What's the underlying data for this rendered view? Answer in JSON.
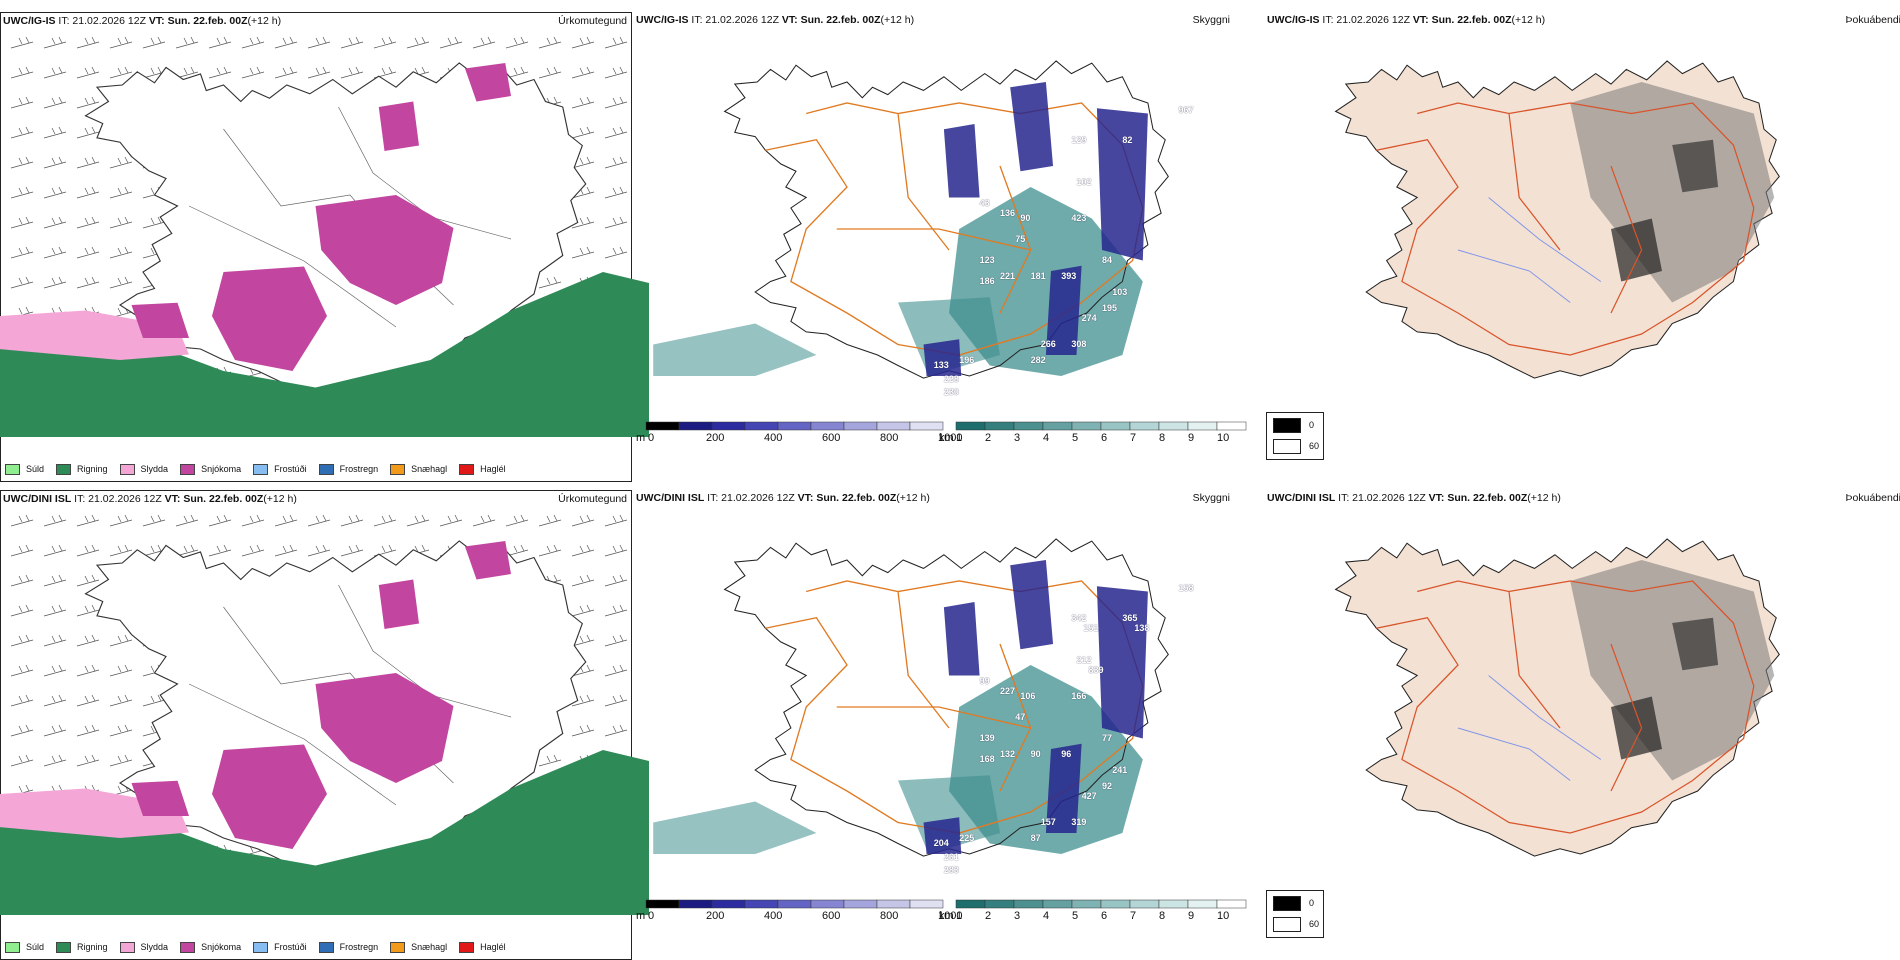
{
  "rows": [
    {
      "model": "UWC/IG-IS",
      "it_label": "IT:",
      "it_value": "21.02.2026 12Z",
      "vt_label": "VT:",
      "vt_value": "Sun. 22.feb. 00Z",
      "lead": "(+12 h)",
      "labels": [
        {
          "t": "129"
        },
        {
          "t": "82"
        },
        {
          "t": "102"
        },
        {
          "t": "43"
        },
        {
          "t": "136"
        },
        {
          "t": "90"
        },
        {
          "t": "423"
        },
        {
          "t": "75"
        },
        {
          "t": "123"
        },
        {
          "t": "84"
        },
        {
          "t": "221"
        },
        {
          "t": "181"
        },
        {
          "t": "393"
        },
        {
          "t": "103"
        },
        {
          "t": "195"
        },
        {
          "t": "274"
        },
        {
          "t": "266"
        },
        {
          "t": "308"
        },
        {
          "t": "282"
        },
        {
          "t": "133"
        },
        {
          "t": "196"
        },
        {
          "t": "228"
        },
        {
          "t": "230"
        },
        {
          "t": "186"
        },
        {
          "t": "967"
        }
      ]
    },
    {
      "model": "UWC/DINI ISL",
      "it_label": "IT:",
      "it_value": "21.02.2026 12Z",
      "vt_label": "VT:",
      "vt_value": "Sun. 22.feb. 00Z",
      "lead": "(+12 h)",
      "labels": [
        {
          "t": "342"
        },
        {
          "t": "365"
        },
        {
          "t": "212"
        },
        {
          "t": "99"
        },
        {
          "t": "227"
        },
        {
          "t": "106"
        },
        {
          "t": "166"
        },
        {
          "t": "47"
        },
        {
          "t": "139"
        },
        {
          "t": "77"
        },
        {
          "t": "132"
        },
        {
          "t": "90"
        },
        {
          "t": "96"
        },
        {
          "t": "241"
        },
        {
          "t": "92"
        },
        {
          "t": "427"
        },
        {
          "t": "157"
        },
        {
          "t": "319"
        },
        {
          "t": "87"
        },
        {
          "t": "204"
        },
        {
          "t": "225"
        },
        {
          "t": "261"
        },
        {
          "t": "283"
        },
        {
          "t": "168"
        },
        {
          "t": "158"
        },
        {
          "t": "151"
        },
        {
          "t": "138"
        },
        {
          "t": "839"
        }
      ]
    }
  ],
  "panel_titles": {
    "precip": "Úrkomutegund",
    "visibility": "Skyggni",
    "fog": "Þokuábendi"
  },
  "precip_legend": [
    {
      "label": "Súld",
      "color": "#90ee90"
    },
    {
      "label": "Rigning",
      "color": "#2e8b57"
    },
    {
      "label": "Slydda",
      "color": "#f4a6d7"
    },
    {
      "label": "Snjókoma",
      "color": "#c2459f"
    },
    {
      "label": "Frostúði",
      "color": "#87bdf0"
    },
    {
      "label": "Frostregn",
      "color": "#2f6eb5"
    },
    {
      "label": "Snæhagl",
      "color": "#f29a1a"
    },
    {
      "label": "Haglél",
      "color": "#e01818"
    }
  ],
  "height_bar": {
    "unit": "m",
    "ticks": [
      "0",
      "200",
      "400",
      "600",
      "800",
      "1000"
    ],
    "colors": [
      "#000000",
      "#1b1b82",
      "#2c2ca0",
      "#4545b4",
      "#6464c4",
      "#8585d2",
      "#a5a5dd",
      "#c5c5e8",
      "#e0e0f3"
    ]
  },
  "vis_bar": {
    "unit": "km",
    "ticks": [
      "1",
      "2",
      "3",
      "4",
      "5",
      "6",
      "7",
      "8",
      "9",
      "10"
    ],
    "colors": [
      "#1f6e6e",
      "#357f7f",
      "#4c9090",
      "#65a1a1",
      "#7fb3b3",
      "#99c4c4",
      "#b3d5d5",
      "#cce4e4",
      "#e3f1f1",
      "#ffffff"
    ]
  },
  "fog_key": [
    {
      "label": "0",
      "color": "#000000"
    },
    {
      "label": "60",
      "color": "#ffffff"
    }
  ],
  "colors": {
    "snow": "#c2459f",
    "rain": "#2e8b57",
    "sleet": "#f4a6d7",
    "land": "#f3e1d3",
    "roads": "#e07a22",
    "teal": "#3f8f8f",
    "navy": "#26268e"
  }
}
